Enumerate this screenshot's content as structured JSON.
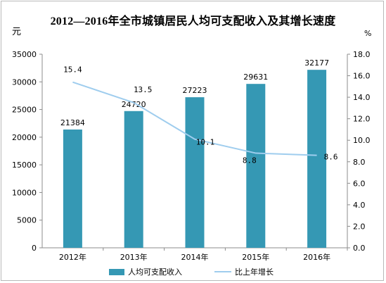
{
  "chart_data": {
    "type": "bar",
    "title": "2012—2016年全市城镇居民人均可支配收入及其增长速度",
    "categories": [
      "2012年",
      "2013年",
      "2014年",
      "2015年",
      "2016年"
    ],
    "y_left": {
      "unit": "元",
      "range": [
        0,
        35000
      ],
      "ticks": [
        "0",
        "5000",
        "10000",
        "15000",
        "20000",
        "25000",
        "30000",
        "35000"
      ]
    },
    "y_right": {
      "unit": "%",
      "range": [
        0,
        18
      ],
      "ticks": [
        "0.0",
        "2.0",
        "4.0",
        "6.0",
        "8.0",
        "10.0",
        "12.0",
        "14.0",
        "16.0",
        "18.0"
      ]
    },
    "series": [
      {
        "name": "人均可支配收入",
        "type": "bar",
        "axis": "left",
        "color": "#3598b4",
        "values": [
          21384,
          24720,
          27223,
          29631,
          32177
        ],
        "labels": [
          "21384",
          "24720",
          "27223",
          "29631",
          "32177"
        ]
      },
      {
        "name": "比上年增长",
        "type": "line",
        "axis": "right",
        "color": "#9fcdee",
        "values": [
          15.4,
          13.5,
          10.1,
          8.8,
          8.6
        ],
        "labels": [
          "15.4",
          "13.5",
          "10.1",
          "8.8",
          "8.6"
        ]
      }
    ],
    "grid": false,
    "legend_position": "bottom"
  }
}
